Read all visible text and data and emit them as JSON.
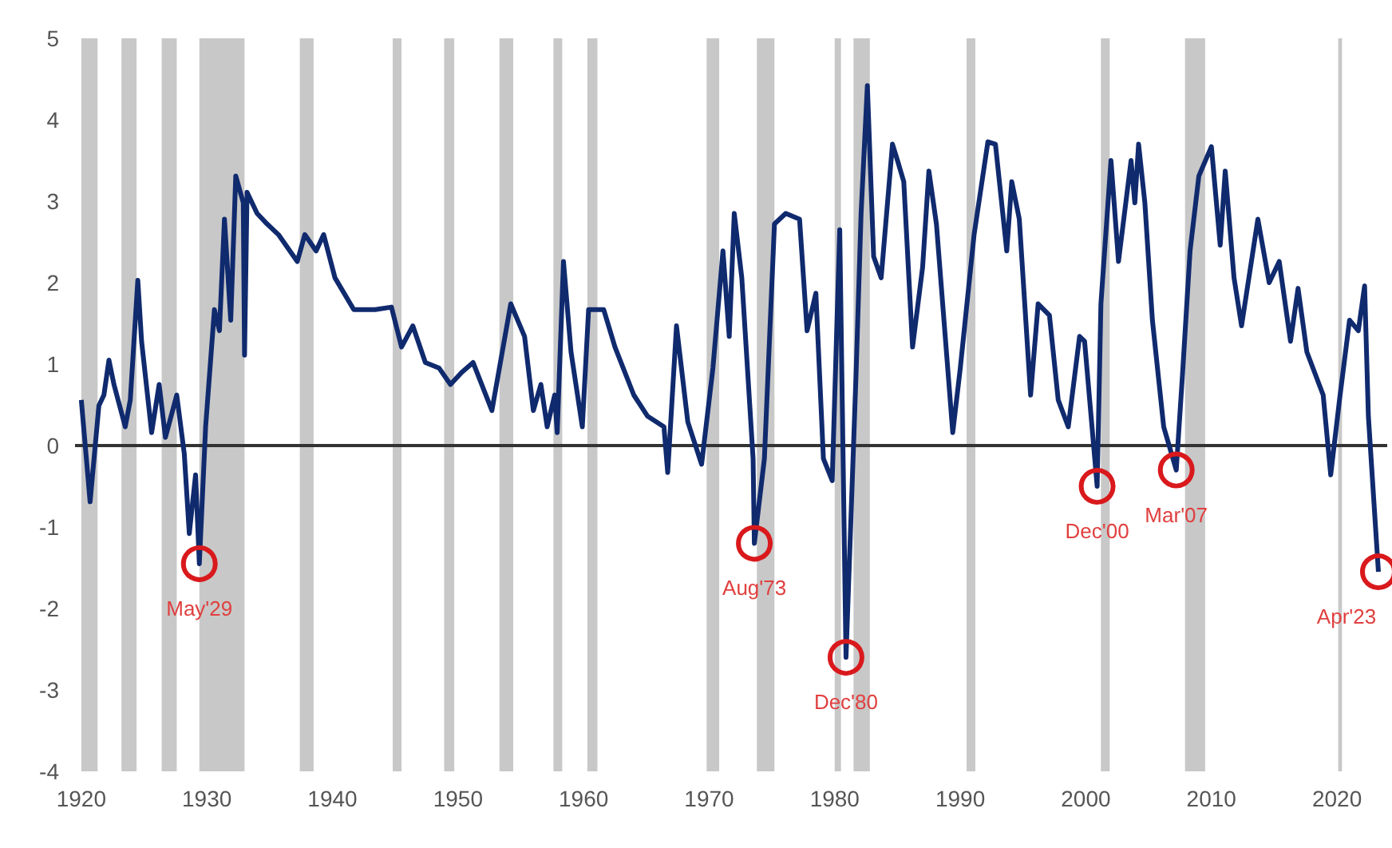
{
  "chart_data": {
    "type": "line",
    "x": [
      1920.0,
      1920.7,
      1921.4,
      1921.8,
      1922.2,
      1922.6,
      1923.5,
      1923.9,
      1924.5,
      1924.8,
      1925.6,
      1926.2,
      1926.7,
      1927.6,
      1928.2,
      1928.6,
      1929.1,
      1929.4,
      1929.9,
      1930.6,
      1931.0,
      1931.4,
      1931.9,
      1932.3,
      1932.9,
      1933.0,
      1933.2,
      1934.0,
      1934.8,
      1935.7,
      1937.2,
      1937.8,
      1938.7,
      1939.3,
      1940.2,
      1941.7,
      1943.4,
      1944.7,
      1945.5,
      1946.4,
      1947.4,
      1948.5,
      1949.4,
      1950.3,
      1951.2,
      1952.7,
      1954.2,
      1955.3,
      1956.0,
      1956.6,
      1957.1,
      1957.7,
      1957.9,
      1958.4,
      1959.0,
      1959.9,
      1960.4,
      1961.6,
      1962.5,
      1964.0,
      1965.1,
      1966.4,
      1966.7,
      1967.4,
      1968.3,
      1969.4,
      1970.3,
      1971.1,
      1971.6,
      1972.0,
      1972.6,
      1973.5,
      1973.6,
      1974.4,
      1975.2,
      1976.1,
      1977.2,
      1977.8,
      1978.5,
      1979.1,
      1979.8,
      1980.4,
      1980.9,
      1981.7,
      1982.1,
      1982.6,
      1983.1,
      1983.7,
      1984.6,
      1985.0,
      1985.5,
      1986.2,
      1987.0,
      1987.5,
      1988.1,
      1989.4,
      1990.0,
      1991.1,
      1992.2,
      1992.8,
      1993.7,
      1994.1,
      1994.7,
      1995.6,
      1996.2,
      1997.1,
      1997.8,
      1998.6,
      1999.5,
      1999.9,
      2000.9,
      2001.2,
      2002.0,
      2002.6,
      2003.6,
      2003.9,
      2004.2,
      2004.7,
      2005.3,
      2006.2,
      2007.2,
      2007.7,
      2008.3,
      2009.0,
      2010.0,
      2010.7,
      2011.1,
      2011.8,
      2012.4,
      2013.7,
      2014.6,
      2015.4,
      2016.3,
      2016.9,
      2017.6,
      2018.9,
      2019.5,
      2020.2,
      2021.0,
      2021.7,
      2022.2,
      2022.5,
      2023.3
    ],
    "series": [
      {
        "color": "#102a6e",
        "values": [
          0.56,
          -0.69,
          0.49,
          0.62,
          1.05,
          0.75,
          0.23,
          0.56,
          2.03,
          1.28,
          0.16,
          0.75,
          0.1,
          0.62,
          -0.1,
          -1.08,
          -0.36,
          -1.45,
          0.23,
          1.67,
          1.41,
          2.78,
          1.54,
          3.31,
          2.98,
          1.11,
          3.11,
          2.85,
          2.72,
          2.59,
          2.26,
          2.59,
          2.39,
          2.59,
          2.06,
          1.67,
          1.67,
          1.7,
          1.21,
          1.47,
          1.02,
          0.95,
          0.75,
          0.9,
          1.02,
          0.43,
          1.74,
          1.34,
          0.43,
          0.75,
          0.23,
          0.62,
          0.16,
          2.26,
          1.15,
          0.23,
          1.67,
          1.67,
          1.21,
          0.62,
          0.36,
          0.23,
          -0.33,
          1.47,
          0.29,
          -0.23,
          0.95,
          2.39,
          1.34,
          2.85,
          2.06,
          -0.16,
          -1.2,
          -0.16,
          2.72,
          2.85,
          2.78,
          1.41,
          1.87,
          -0.16,
          -0.43,
          2.65,
          -2.6,
          0.88,
          2.85,
          4.42,
          2.32,
          2.06,
          3.7,
          3.5,
          3.24,
          1.21,
          2.19,
          3.37,
          2.72,
          0.16,
          0.95,
          2.59,
          3.73,
          3.7,
          2.39,
          3.24,
          2.78,
          0.62,
          1.74,
          1.6,
          0.56,
          0.23,
          1.34,
          1.28,
          -0.5,
          1.74,
          3.5,
          2.26,
          3.5,
          2.98,
          3.7,
          2.98,
          1.54,
          0.23,
          -0.3,
          0.88,
          2.39,
          3.31,
          3.67,
          2.46,
          3.37,
          2.06,
          1.47,
          2.78,
          2.0,
          2.26,
          1.28,
          1.93,
          1.15,
          0.62,
          -0.36,
          0.56,
          1.54,
          1.41,
          1.96,
          0.36,
          -1.55
        ]
      }
    ],
    "xlim": [
      1919.5,
      2024
    ],
    "xticks": [
      1920,
      1930,
      1940,
      1950,
      1960,
      1970,
      1980,
      1990,
      2000,
      2010,
      2020
    ],
    "ylim": [
      -4,
      5
    ],
    "yticks": [
      -4,
      -3,
      -2,
      -1,
      0,
      1,
      2,
      3,
      4,
      5
    ],
    "grid": false,
    "marker": "none",
    "line_style": "solid",
    "ref_lines": [
      {
        "axis": "y",
        "value": 0,
        "color": "#333333"
      }
    ],
    "bands": [
      {
        "axis": "x",
        "from": 1920.0,
        "to": 1921.3,
        "color": "#c8c8c8"
      },
      {
        "axis": "x",
        "from": 1923.2,
        "to": 1924.4,
        "color": "#c8c8c8"
      },
      {
        "axis": "x",
        "from": 1926.4,
        "to": 1927.6,
        "color": "#c8c8c8"
      },
      {
        "axis": "x",
        "from": 1929.4,
        "to": 1933.0,
        "color": "#c8c8c8"
      },
      {
        "axis": "x",
        "from": 1937.4,
        "to": 1938.5,
        "color": "#c8c8c8"
      },
      {
        "axis": "x",
        "from": 1944.8,
        "to": 1945.5,
        "color": "#c8c8c8"
      },
      {
        "axis": "x",
        "from": 1948.9,
        "to": 1949.7,
        "color": "#c8c8c8"
      },
      {
        "axis": "x",
        "from": 1953.3,
        "to": 1954.4,
        "color": "#c8c8c8"
      },
      {
        "axis": "x",
        "from": 1957.6,
        "to": 1958.3,
        "color": "#c8c8c8"
      },
      {
        "axis": "x",
        "from": 1960.3,
        "to": 1961.1,
        "color": "#c8c8c8"
      },
      {
        "axis": "x",
        "from": 1969.8,
        "to": 1970.8,
        "color": "#c8c8c8"
      },
      {
        "axis": "x",
        "from": 1973.8,
        "to": 1975.2,
        "color": "#c8c8c8"
      },
      {
        "axis": "x",
        "from": 1980.0,
        "to": 1980.5,
        "color": "#c8c8c8"
      },
      {
        "axis": "x",
        "from": 1981.5,
        "to": 1982.8,
        "color": "#c8c8c8"
      },
      {
        "axis": "x",
        "from": 1990.5,
        "to": 1991.2,
        "color": "#c8c8c8"
      },
      {
        "axis": "x",
        "from": 2001.2,
        "to": 2001.9,
        "color": "#c8c8c8"
      },
      {
        "axis": "x",
        "from": 2007.9,
        "to": 2009.5,
        "color": "#c8c8c8"
      },
      {
        "axis": "x",
        "from": 2020.1,
        "to": 2020.4,
        "color": "#c8c8c8"
      }
    ],
    "annotations": [
      {
        "text": "May'29",
        "x": 1929.4,
        "y": -1.45
      },
      {
        "text": "Aug'73",
        "x": 1973.6,
        "y": -1.2
      },
      {
        "text": "Dec'80",
        "x": 1980.9,
        "y": -2.6
      },
      {
        "text": "Dec'00",
        "x": 2000.9,
        "y": -0.5
      },
      {
        "text": "Mar'07",
        "x": 2007.2,
        "y": -0.3
      },
      {
        "text": "Apr'23",
        "x": 2023.3,
        "y": -1.55
      }
    ]
  }
}
